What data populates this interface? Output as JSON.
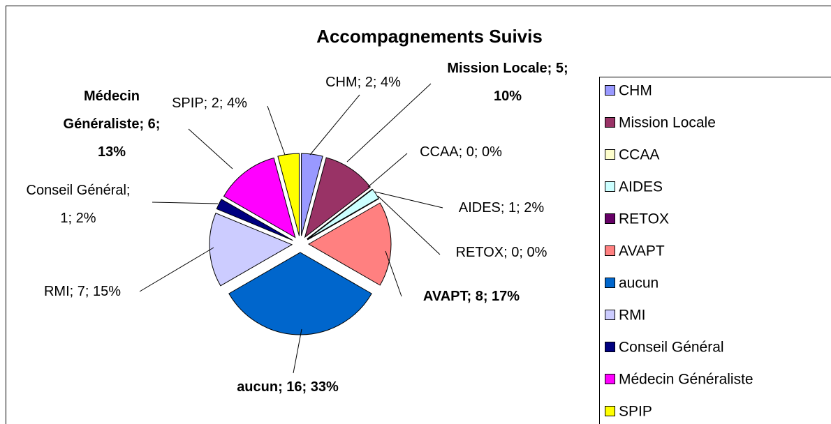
{
  "chart_data": {
    "type": "pie",
    "title": "Accompagnements Suivis",
    "categories": [
      "CHM",
      "Mission Locale",
      "CCAA",
      "AIDES",
      "RETOX",
      "AVAPT",
      "aucun",
      "RMI",
      "Conseil Général",
      "Médecin Généraliste",
      "SPIP"
    ],
    "values": [
      2,
      5,
      0,
      1,
      0,
      8,
      16,
      7,
      1,
      6,
      2
    ],
    "value_labels": [
      "CHM; 2; 4%",
      "Mission Locale; 5; 10%",
      "CCAA; 0; 0%",
      "AIDES; 1; 2%",
      "RETOX; 0; 0%",
      "AVAPT; 8; 17%",
      "aucun; 16; 33%",
      "RMI; 7; 15%",
      "Conseil Général; 1; 2%",
      "Médecin Généraliste; 6; 13%",
      "SPIP; 2; 4%"
    ],
    "colors": [
      "#9999ff",
      "#993366",
      "#ffffcc",
      "#ccffff",
      "#660066",
      "#ff8080",
      "#0066cc",
      "#ccccff",
      "#000080",
      "#ff00ff",
      "#ffff00"
    ],
    "legend": "right"
  }
}
